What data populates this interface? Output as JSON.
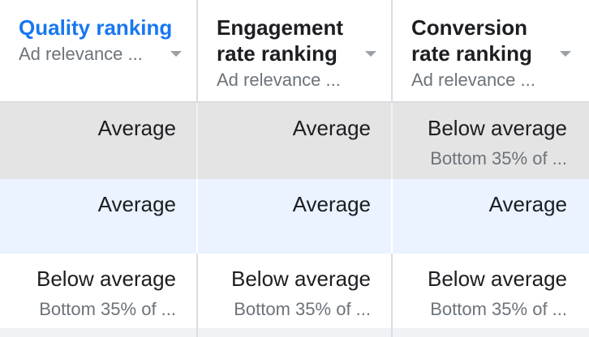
{
  "columns": [
    {
      "title": "Quality ranking",
      "subtitle": "Ad relevance ..."
    },
    {
      "title": "Engagement rate ranking",
      "subtitle": "Ad relevance ..."
    },
    {
      "title": "Conversion rate ranking",
      "subtitle": "Ad relevance ..."
    }
  ],
  "rows": [
    {
      "cells": [
        {
          "value": "Average",
          "detail": ""
        },
        {
          "value": "Average",
          "detail": ""
        },
        {
          "value": "Below average",
          "detail": "Bottom 35% of ..."
        }
      ]
    },
    {
      "cells": [
        {
          "value": "Average",
          "detail": ""
        },
        {
          "value": "Average",
          "detail": ""
        },
        {
          "value": "Average",
          "detail": ""
        }
      ]
    },
    {
      "cells": [
        {
          "value": "Below average",
          "detail": "Bottom 35% of ..."
        },
        {
          "value": "Below average",
          "detail": "Bottom 35% of ..."
        },
        {
          "value": "Below average",
          "detail": "Bottom 35% of ..."
        }
      ]
    }
  ],
  "colors": {
    "active_sort_header": "#1877f2",
    "highlighted_row": "#e4e4e4",
    "hover_row": "#eaf3ff"
  },
  "icons": {
    "sort": "chevron-down-icon"
  }
}
